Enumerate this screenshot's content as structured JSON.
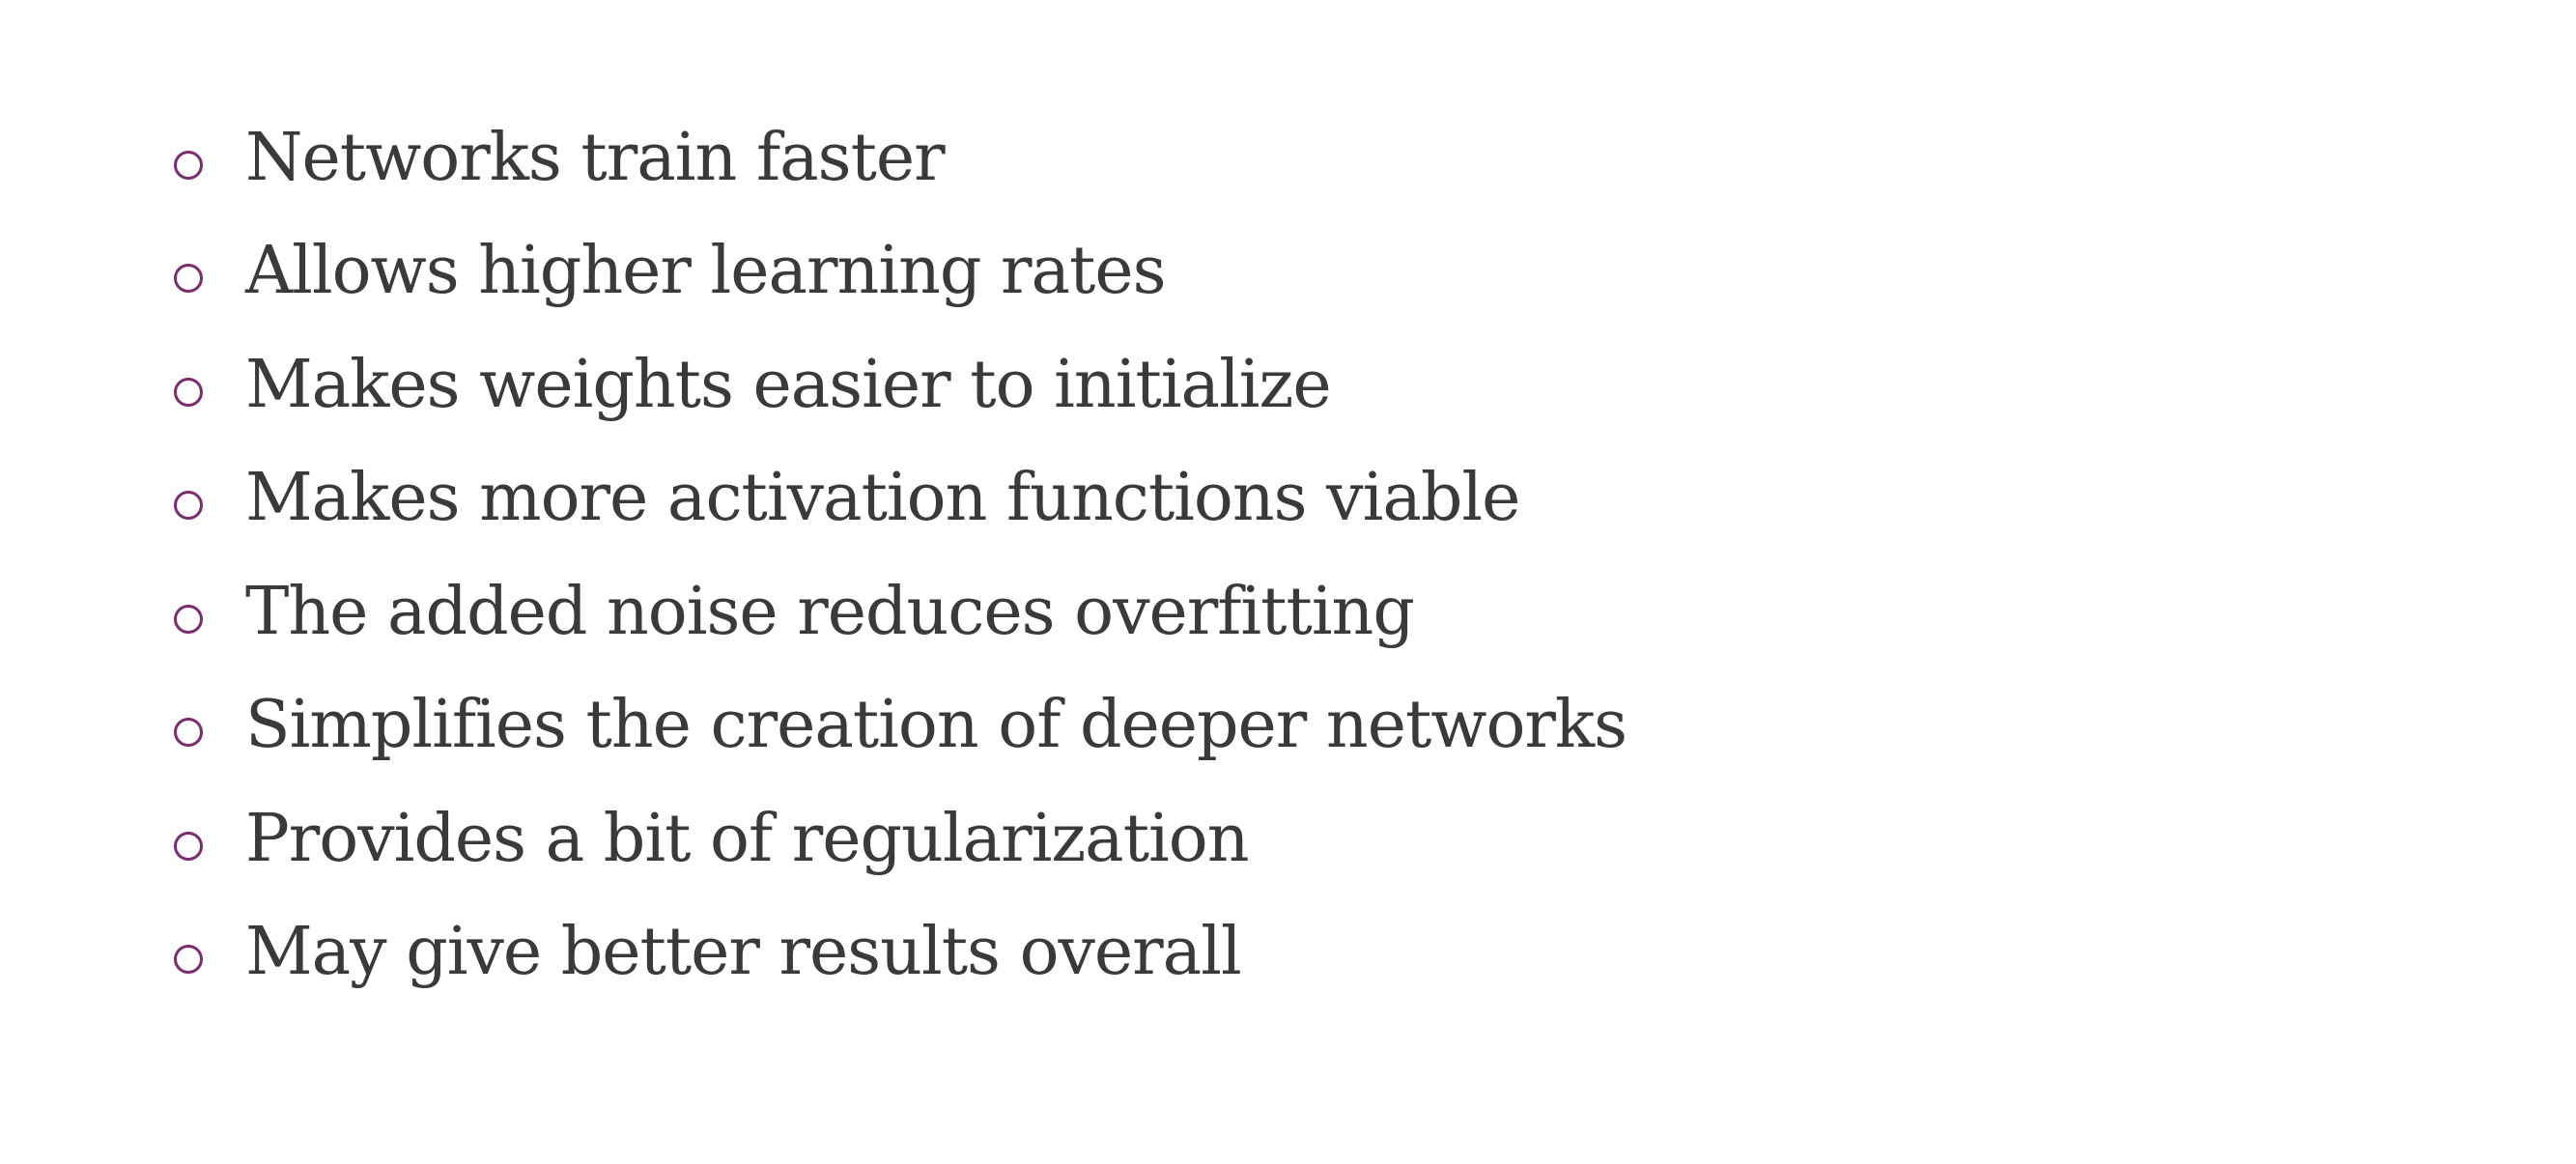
{
  "slide": {
    "bullets": [
      "Networks train faster",
      "Allows higher learning rates",
      "Makes weights easier to initialize",
      "Makes more activation functions viable",
      "The added noise reduces overfitting",
      "Simplifies the creation of deeper networks",
      "Provides a bit of regularization",
      "May give better results overall"
    ],
    "bullet_icon": "hollow-circle-icon",
    "colors": {
      "bullet_marker": "#7B2C6E",
      "text": "#3a3a3a",
      "background": "#ffffff"
    }
  }
}
